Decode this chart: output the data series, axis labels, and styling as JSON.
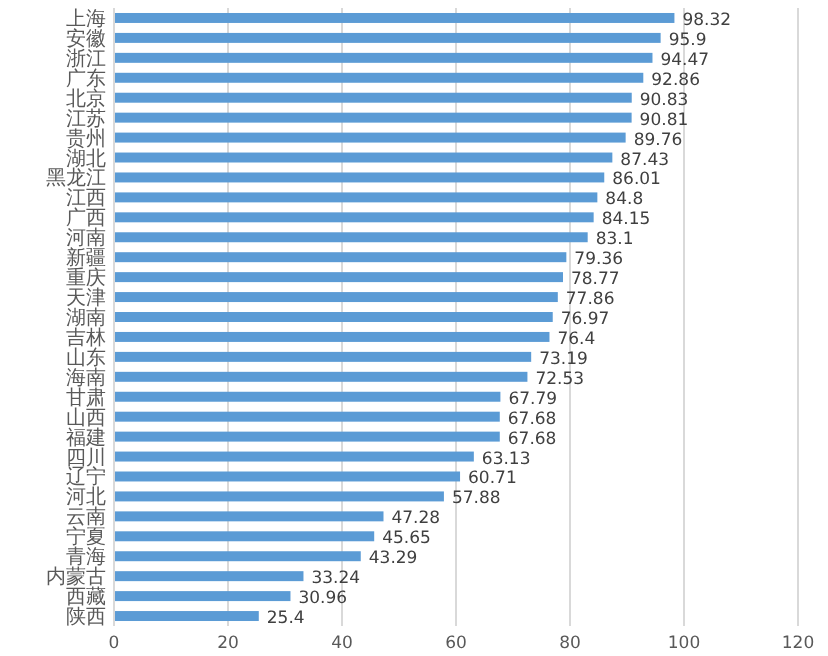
{
  "chart_data": {
    "type": "bar",
    "orientation": "horizontal",
    "categories": [
      "上海",
      "安徽",
      "浙江",
      "广东",
      "北京",
      "江苏",
      "贵州",
      "湖北",
      "黑龙江",
      "江西",
      "广西",
      "河南",
      "新疆",
      "重庆",
      "天津",
      "湖南",
      "吉林",
      "山东",
      "海南",
      "甘肃",
      "山西",
      "福建",
      "四川",
      "辽宁",
      "河北",
      "云南",
      "宁夏",
      "青海",
      "内蒙古",
      "西藏",
      "陕西"
    ],
    "values": [
      98.32,
      95.9,
      94.47,
      92.86,
      90.83,
      90.81,
      89.76,
      87.43,
      86.01,
      84.8,
      84.15,
      83.1,
      79.36,
      78.77,
      77.86,
      76.97,
      76.4,
      73.19,
      72.53,
      67.79,
      67.68,
      67.68,
      63.13,
      60.71,
      57.88,
      47.28,
      45.65,
      43.29,
      33.24,
      30.96,
      25.4
    ],
    "color": "#5b9bd5",
    "xlim": [
      0,
      120
    ],
    "xticks": [
      0,
      20,
      40,
      60,
      80,
      100,
      120
    ],
    "grid": "x",
    "data_labels": true
  }
}
